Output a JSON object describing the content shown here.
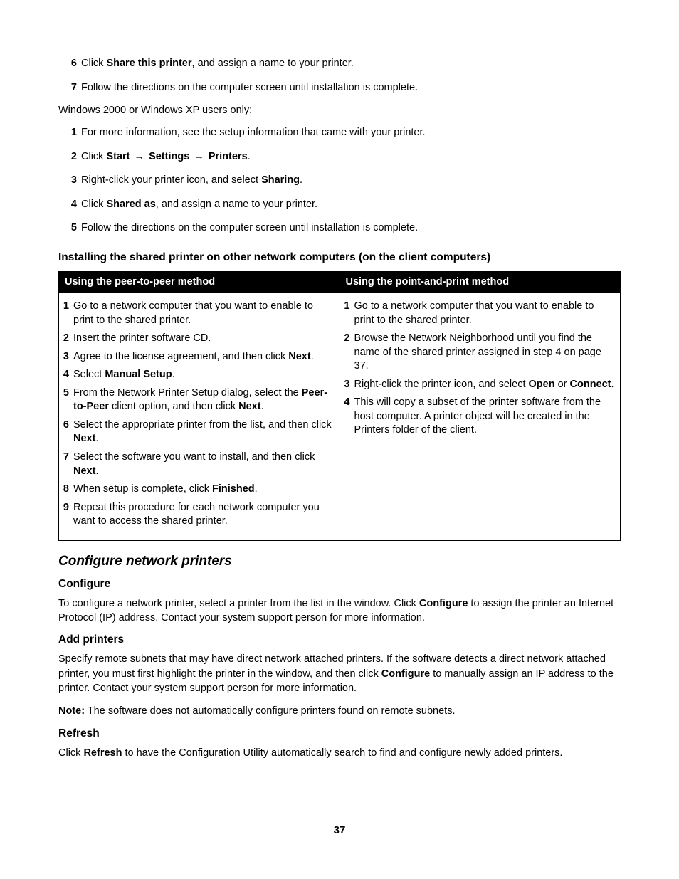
{
  "page_number": "37",
  "colors": {
    "table_header_bg": "#000000",
    "table_header_fg": "#ffffff",
    "border": "#000000",
    "text": "#000000",
    "bg": "#ffffff"
  },
  "typography": {
    "body_size_pt": 11,
    "h2_size_pt": 14,
    "h3_size_pt": 12,
    "font_family": "Arial"
  },
  "top_steps_a": [
    {
      "n": "6",
      "pre": "Click ",
      "bold": "Share this printer",
      "post": ", and assign a name to your printer."
    },
    {
      "n": "7",
      "pre": "Follow the directions on the computer screen until installation is complete.",
      "bold": "",
      "post": ""
    }
  ],
  "intro_a": "Windows 2000 or Windows XP users only:",
  "top_steps_b": [
    {
      "n": "1",
      "html": "For more information, see the setup information that came with your printer."
    },
    {
      "n": "2",
      "html": "Click <b>Start</b> <span class='arrow'>&#8594;</span> <b>Settings</b> <span class='arrow'>&#8594;</span> <b>Printers</b>."
    },
    {
      "n": "3",
      "html": "Right-click your printer icon, and select <b>Sharing</b>."
    },
    {
      "n": "4",
      "html": "Click <b>Shared as</b>, and assign a name to your printer."
    },
    {
      "n": "5",
      "html": "Follow the directions on the computer screen until installation is complete."
    }
  ],
  "h3_install": "Installing the shared printer on other network computers (on the client computers)",
  "table": {
    "col1_header": "Using the peer-to-peer method",
    "col2_header": "Using the point-and-print method",
    "col1_steps": [
      {
        "n": "1",
        "html": "Go to a network computer that you want to enable to print to the shared printer."
      },
      {
        "n": "2",
        "html": "Insert the printer software CD."
      },
      {
        "n": "3",
        "html": "Agree to the license agreement, and then click <b>Next</b>."
      },
      {
        "n": "4",
        "html": "Select <b>Manual Setup</b>."
      },
      {
        "n": "5",
        "html": "From the Network Printer Setup dialog, select the <b>Peer-to-Peer</b> client option, and then click <b>Next</b>."
      },
      {
        "n": "6",
        "html": "Select the appropriate printer from the list, and then click <b>Next</b>."
      },
      {
        "n": "7",
        "html": "Select the software you want to install, and then click <b>Next</b>."
      },
      {
        "n": "8",
        "html": "When setup is complete, click <b>Finished</b>."
      },
      {
        "n": "9",
        "html": "Repeat this procedure for each network computer you want to access the shared printer."
      }
    ],
    "col2_steps": [
      {
        "n": "1",
        "html": "Go to a network computer that you want to enable to print to the shared printer."
      },
      {
        "n": "2",
        "html": "Browse the Network Neighborhood until you find the name of the shared printer assigned in step 4 on page 37."
      },
      {
        "n": "3",
        "html": "Right-click the printer icon, and select <b>Open</b> or <b>Connect</b>."
      },
      {
        "n": "4",
        "html": "This will copy a subset of the printer software from the host computer. A printer object will be created in the Printers folder of the client."
      }
    ]
  },
  "h2_configure": "Configure network printers",
  "configure": {
    "title": "Configure",
    "body": "To configure a network printer, select a printer from the list in the window. Click <b>Configure</b> to assign the printer an Internet Protocol (IP) address. Contact your system support person for more information."
  },
  "add": {
    "title": "Add printers",
    "body": "Specify remote subnets that may have direct network attached printers. If the software detects a direct network attached printer, you must first highlight the printer in the window, and then click <b>Configure</b> to manually assign an IP address to the printer. Contact your system support person for more information.",
    "note": "<b>Note:</b> The software does not automatically configure printers found on remote subnets."
  },
  "refresh": {
    "title": "Refresh",
    "body": "Click <b>Refresh</b> to have the Configuration Utility automatically search to find and configure newly added printers."
  }
}
